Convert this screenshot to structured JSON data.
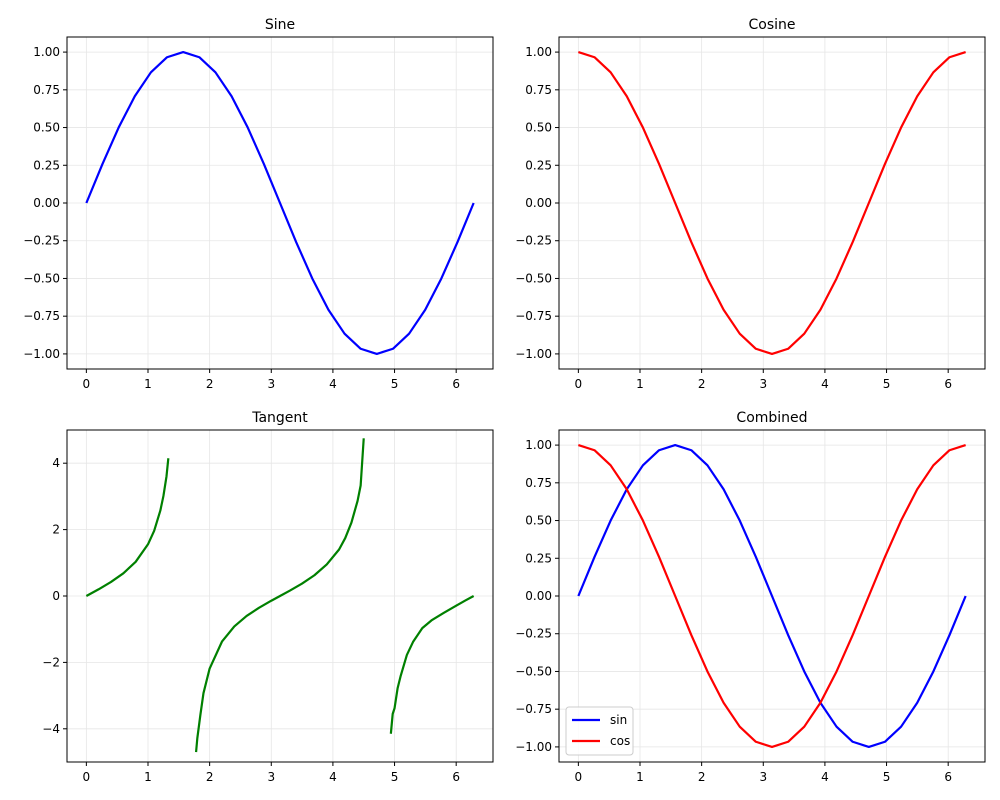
{
  "chart_data": [
    {
      "type": "line",
      "title": "Sine",
      "xlabel": "",
      "ylabel": "",
      "xlim": [
        -0.31416,
        6.59734
      ],
      "ylim": [
        -1.1,
        1.1
      ],
      "xticks": [
        0,
        1,
        2,
        3,
        4,
        5,
        6
      ],
      "xtick_labels": [
        "0",
        "1",
        "2",
        "3",
        "4",
        "5",
        "6"
      ],
      "yticks": [
        -1.0,
        -0.75,
        -0.5,
        -0.25,
        0.0,
        0.25,
        0.5,
        0.75,
        1.0
      ],
      "ytick_labels": [
        "−1.00",
        "−0.75",
        "−0.50",
        "−0.25",
        "0.00",
        "0.25",
        "0.50",
        "0.75",
        "1.00"
      ],
      "grid": true,
      "legend": null,
      "series": [
        {
          "color": "#0000ff",
          "x": [
            0,
            0.2618,
            0.5236,
            0.7854,
            1.0472,
            1.309,
            1.5708,
            1.8326,
            2.0944,
            2.3562,
            2.618,
            2.8798,
            3.1416,
            3.4034,
            3.6652,
            3.927,
            4.1888,
            4.4506,
            4.7124,
            4.9742,
            5.236,
            5.4978,
            5.7596,
            6.0214,
            6.2832
          ],
          "values": [
            0,
            0.2588,
            0.5,
            0.7071,
            0.866,
            0.9659,
            1,
            0.9659,
            0.866,
            0.7071,
            0.5,
            0.2588,
            0,
            -0.2588,
            -0.5,
            -0.7071,
            -0.866,
            -0.9659,
            -1,
            -0.9659,
            -0.866,
            -0.7071,
            -0.5,
            -0.2588,
            0
          ]
        }
      ]
    },
    {
      "type": "line",
      "title": "Cosine",
      "xlabel": "",
      "ylabel": "",
      "xlim": [
        -0.31416,
        6.59734
      ],
      "ylim": [
        -1.1,
        1.1
      ],
      "xticks": [
        0,
        1,
        2,
        3,
        4,
        5,
        6
      ],
      "xtick_labels": [
        "0",
        "1",
        "2",
        "3",
        "4",
        "5",
        "6"
      ],
      "yticks": [
        -1.0,
        -0.75,
        -0.5,
        -0.25,
        0.0,
        0.25,
        0.5,
        0.75,
        1.0
      ],
      "ytick_labels": [
        "−1.00",
        "−0.75",
        "−0.50",
        "−0.25",
        "0.00",
        "0.25",
        "0.50",
        "0.75",
        "1.00"
      ],
      "grid": true,
      "legend": null,
      "series": [
        {
          "color": "#ff0000",
          "x": [
            0,
            0.2618,
            0.5236,
            0.7854,
            1.0472,
            1.309,
            1.5708,
            1.8326,
            2.0944,
            2.3562,
            2.618,
            2.8798,
            3.1416,
            3.4034,
            3.6652,
            3.927,
            4.1888,
            4.4506,
            4.7124,
            4.9742,
            5.236,
            5.4978,
            5.7596,
            6.0214,
            6.2832
          ],
          "values": [
            1,
            0.9659,
            0.866,
            0.7071,
            0.5,
            0.2588,
            0,
            -0.2588,
            -0.5,
            -0.7071,
            -0.866,
            -0.9659,
            -1,
            -0.9659,
            -0.866,
            -0.7071,
            -0.5,
            -0.2588,
            0,
            0.2588,
            0.5,
            0.7071,
            0.866,
            0.9659,
            1
          ]
        }
      ]
    },
    {
      "type": "line",
      "title": "Tangent",
      "xlabel": "",
      "ylabel": "",
      "xlim": [
        -0.31416,
        6.59734
      ],
      "ylim": [
        -5,
        5
      ],
      "xticks": [
        0,
        1,
        2,
        3,
        4,
        5,
        6
      ],
      "xtick_labels": [
        "0",
        "1",
        "2",
        "3",
        "4",
        "5",
        "6"
      ],
      "yticks": [
        -4,
        -2,
        0,
        2,
        4
      ],
      "ytick_labels": [
        "−4",
        "−2",
        "0",
        "2",
        "4"
      ],
      "grid": true,
      "legend": null,
      "series": [
        {
          "color": "#008000",
          "segments": [
            {
              "x": [
                0,
                0.2,
                0.4,
                0.6,
                0.8,
                1.0,
                1.1,
                1.2,
                1.25,
                1.3,
                1.33
              ],
              "values": [
                0,
                0.2027,
                0.4228,
                0.6841,
                1.0296,
                1.5574,
                1.9648,
                2.5722,
                3.0096,
                3.6021,
                4.15
              ]
            },
            {
              "x": [
                1.78,
                1.8,
                1.85,
                1.9,
                2.0,
                2.2,
                2.4,
                2.6,
                2.8,
                3.0,
                3.1416,
                3.3,
                3.5,
                3.7,
                3.9,
                4.1,
                4.2,
                4.3,
                4.4,
                4.45,
                4.5
              ],
              "values": [
                -4.7,
                -4.2863,
                -3.5789,
                -2.927,
                -2.185,
                -1.3738,
                -0.916,
                -0.6016,
                -0.3555,
                -0.1425,
                0,
                0.1597,
                0.3746,
                0.6247,
                0.9508,
                1.4007,
                1.7453,
                2.2075,
                2.8642,
                3.3281,
                4.75
              ]
            },
            {
              "x": [
                4.94,
                4.97,
                5.0,
                5.05,
                5.1,
                5.2,
                5.3,
                5.45,
                5.6,
                5.8,
                6.0,
                6.15,
                6.2832
              ],
              "values": [
                -4.15,
                -3.55,
                -3.3805,
                -2.7737,
                -2.403,
                -1.7749,
                -1.3828,
                -0.967,
                -0.734,
                -0.5075,
                -0.291,
                -0.1337,
                0
              ]
            }
          ]
        }
      ]
    },
    {
      "type": "line",
      "title": "Combined",
      "xlabel": "",
      "ylabel": "",
      "xlim": [
        -0.31416,
        6.59734
      ],
      "ylim": [
        -1.1,
        1.1
      ],
      "xticks": [
        0,
        1,
        2,
        3,
        4,
        5,
        6
      ],
      "xtick_labels": [
        "0",
        "1",
        "2",
        "3",
        "4",
        "5",
        "6"
      ],
      "yticks": [
        -1.0,
        -0.75,
        -0.5,
        -0.25,
        0.0,
        0.25,
        0.5,
        0.75,
        1.0
      ],
      "ytick_labels": [
        "−1.00",
        "−0.75",
        "−0.50",
        "−0.25",
        "0.00",
        "0.25",
        "0.50",
        "0.75",
        "1.00"
      ],
      "grid": true,
      "legend": "lower-left",
      "series": [
        {
          "name": "sin",
          "color": "#0000ff",
          "x": [
            0,
            0.2618,
            0.5236,
            0.7854,
            1.0472,
            1.309,
            1.5708,
            1.8326,
            2.0944,
            2.3562,
            2.618,
            2.8798,
            3.1416,
            3.4034,
            3.6652,
            3.927,
            4.1888,
            4.4506,
            4.7124,
            4.9742,
            5.236,
            5.4978,
            5.7596,
            6.0214,
            6.2832
          ],
          "values": [
            0,
            0.2588,
            0.5,
            0.7071,
            0.866,
            0.9659,
            1,
            0.9659,
            0.866,
            0.7071,
            0.5,
            0.2588,
            0,
            -0.2588,
            -0.5,
            -0.7071,
            -0.866,
            -0.9659,
            -1,
            -0.9659,
            -0.866,
            -0.7071,
            -0.5,
            -0.2588,
            0
          ]
        },
        {
          "name": "cos",
          "color": "#ff0000",
          "x": [
            0,
            0.2618,
            0.5236,
            0.7854,
            1.0472,
            1.309,
            1.5708,
            1.8326,
            2.0944,
            2.3562,
            2.618,
            2.8798,
            3.1416,
            3.4034,
            3.6652,
            3.927,
            4.1888,
            4.4506,
            4.7124,
            4.9742,
            5.236,
            5.4978,
            5.7596,
            6.0214,
            6.2832
          ],
          "values": [
            1,
            0.9659,
            0.866,
            0.7071,
            0.5,
            0.2588,
            0,
            -0.2588,
            -0.5,
            -0.7071,
            -0.866,
            -0.9659,
            -1,
            -0.9659,
            -0.866,
            -0.7071,
            -0.5,
            -0.2588,
            0,
            0.2588,
            0.5,
            0.7071,
            0.866,
            0.9659,
            1
          ]
        }
      ]
    }
  ]
}
